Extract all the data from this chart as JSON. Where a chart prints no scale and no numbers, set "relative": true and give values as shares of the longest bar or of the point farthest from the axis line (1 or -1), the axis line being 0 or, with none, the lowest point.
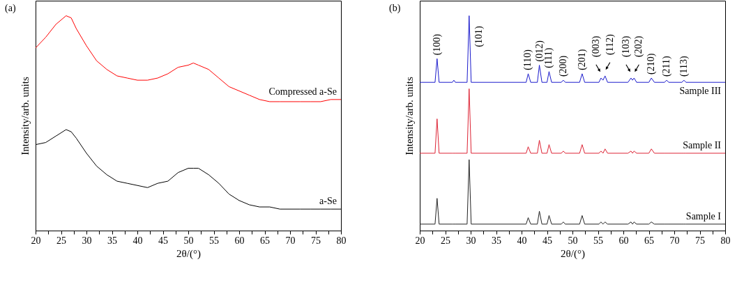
{
  "chart_data": [
    {
      "type": "line",
      "title": "(a)",
      "xlabel": "2θ/(°)",
      "ylabel": "Intensity/arb. units",
      "relative": true,
      "tick_labels": "x",
      "grid": false,
      "legend": false,
      "marker": "none",
      "line_style": "solid",
      "xlim": [
        20,
        80
      ],
      "xticks": [
        20,
        {
          "value": 22.5,
          "label": null
        },
        25,
        {
          "value": 27.5,
          "label": null
        },
        30,
        {
          "value": 32.5,
          "label": null
        },
        35,
        {
          "value": 37.5,
          "label": null
        },
        40,
        {
          "value": 42.5,
          "label": null
        },
        45,
        {
          "value": 47.5,
          "label": null
        },
        50,
        {
          "value": 52.5,
          "label": null
        },
        55,
        {
          "value": 57.5,
          "label": null
        },
        60,
        {
          "value": 62.5,
          "label": null
        },
        65,
        {
          "value": 67.5,
          "label": null
        },
        70,
        {
          "value": 72.5,
          "label": null
        },
        75,
        {
          "value": 77.5,
          "label": null
        },
        80
      ],
      "x": [
        20,
        22,
        24,
        26,
        27,
        28,
        30,
        32,
        34,
        36,
        38,
        40,
        42,
        44,
        46,
        48,
        50,
        51,
        52,
        54,
        56,
        58,
        60,
        62,
        64,
        66,
        68,
        70,
        72,
        74,
        76,
        78,
        80
      ],
      "series": [
        {
          "name": "Compressed a-Se",
          "color": "#ff0000",
          "values": [
            0.85,
            0.9,
            0.96,
            1,
            0.99,
            0.94,
            0.86,
            0.79,
            0.75,
            0.72,
            0.71,
            0.7,
            0.7,
            0.71,
            0.73,
            0.76,
            0.77,
            0.78,
            0.77,
            0.75,
            0.71,
            0.67,
            0.65,
            0.63,
            0.61,
            0.6,
            0.6,
            0.6,
            0.6,
            0.6,
            0.6,
            0.61,
            0.61
          ]
        },
        {
          "name": "a-Se",
          "color": "#000000",
          "values": [
            0.4,
            0.41,
            0.44,
            0.47,
            0.46,
            0.43,
            0.36,
            0.3,
            0.26,
            0.23,
            0.22,
            0.21,
            0.2,
            0.22,
            0.23,
            0.27,
            0.29,
            0.29,
            0.29,
            0.26,
            0.22,
            0.17,
            0.14,
            0.12,
            0.11,
            0.11,
            0.1,
            0.1,
            0.1,
            0.1,
            0.1,
            0.1,
            0.1
          ]
        }
      ]
    },
    {
      "type": "line",
      "title": "(b)",
      "xlabel": "2θ/(°)",
      "ylabel": "Intensity/arb. units",
      "relative": true,
      "tick_labels": "x",
      "grid": false,
      "legend": false,
      "marker": "none",
      "line_style": "solid",
      "xlim": [
        20,
        80
      ],
      "xticks": [
        20,
        {
          "value": 22.5,
          "label": null
        },
        25,
        {
          "value": 27.5,
          "label": null
        },
        30,
        {
          "value": 32.5,
          "label": null
        },
        35,
        {
          "value": 37.5,
          "label": null
        },
        40,
        {
          "value": 42.5,
          "label": null
        },
        45,
        {
          "value": 47.5,
          "label": null
        },
        50,
        {
          "value": 52.5,
          "label": null
        },
        55,
        {
          "value": 57.5,
          "label": null
        },
        60,
        {
          "value": 62.5,
          "label": null
        },
        65,
        {
          "value": 67.5,
          "label": null
        },
        70,
        {
          "value": 72.5,
          "label": null
        },
        75,
        {
          "value": 77.5,
          "label": null
        },
        80
      ],
      "x": [
        20,
        23.0,
        23.4,
        23.8,
        26.4,
        26.7,
        27.0,
        29.3,
        29.7,
        30.1,
        40.9,
        41.3,
        41.8,
        43.1,
        43.5,
        44.0,
        45.0,
        45.4,
        45.9,
        47.8,
        48.2,
        48.6,
        51.4,
        51.9,
        52.4,
        55.2,
        55.6,
        56.0,
        56.4,
        56.9,
        60.9,
        61.5,
        61.8,
        62.1,
        62.6,
        65.0,
        65.5,
        66.1,
        68.1,
        68.5,
        68.9,
        71.5,
        71.9,
        72.3,
        80
      ],
      "series": [
        {
          "name": "Sample III",
          "color": "#1a1acc",
          "values": [
            0.69,
            0.69,
            0.8,
            0.69,
            0.69,
            0.7,
            0.69,
            0.69,
            1.0,
            0.69,
            0.69,
            0.73,
            0.69,
            0.69,
            0.77,
            0.69,
            0.69,
            0.74,
            0.69,
            0.69,
            0.7,
            0.69,
            0.69,
            0.73,
            0.69,
            0.69,
            0.71,
            0.7,
            0.72,
            0.69,
            0.69,
            0.71,
            0.7,
            0.71,
            0.69,
            0.69,
            0.71,
            0.69,
            0.69,
            0.7,
            0.69,
            0.69,
            0.7,
            0.69,
            0.69
          ]
        },
        {
          "name": "Sample II",
          "color": "#dd2233",
          "values": [
            0.36,
            0.36,
            0.52,
            0.36,
            0.36,
            0.36,
            0.36,
            0.36,
            0.66,
            0.36,
            0.36,
            0.39,
            0.36,
            0.36,
            0.42,
            0.36,
            0.36,
            0.4,
            0.36,
            0.36,
            0.37,
            0.36,
            0.36,
            0.4,
            0.36,
            0.36,
            0.37,
            0.36,
            0.38,
            0.36,
            0.36,
            0.37,
            0.36,
            0.37,
            0.36,
            0.36,
            0.38,
            0.36,
            0.36,
            0.36,
            0.36,
            0.36,
            0.36,
            0.36,
            0.36
          ]
        },
        {
          "name": "Sample I",
          "color": "#222222",
          "values": [
            0.03,
            0.03,
            0.15,
            0.03,
            0.03,
            0.03,
            0.03,
            0.03,
            0.33,
            0.03,
            0.03,
            0.06,
            0.03,
            0.03,
            0.09,
            0.03,
            0.03,
            0.07,
            0.03,
            0.03,
            0.04,
            0.03,
            0.03,
            0.07,
            0.03,
            0.03,
            0.04,
            0.03,
            0.04,
            0.03,
            0.03,
            0.04,
            0.03,
            0.04,
            0.03,
            0.03,
            0.04,
            0.03,
            0.03,
            0.03,
            0.03,
            0.03,
            0.03,
            0.03,
            0.03
          ]
        }
      ],
      "annotations": [
        {
          "text": "(100)",
          "x": 23.4,
          "y": 0.8
        },
        {
          "text": "(101)",
          "x": 29.7,
          "y": 1.0
        },
        {
          "text": "(110)",
          "x": 41.3,
          "y": 0.73
        },
        {
          "text": "(012)",
          "x": 43.5,
          "y": 0.77
        },
        {
          "text": "(111)",
          "x": 45.4,
          "y": 0.74
        },
        {
          "text": "(200)",
          "x": 48.2,
          "y": 0.7
        },
        {
          "text": "(201)",
          "x": 51.9,
          "y": 0.73
        },
        {
          "text": "(003)",
          "x": 55.6,
          "y": 0.71
        },
        {
          "text": "(112)",
          "x": 56.4,
          "y": 0.72
        },
        {
          "text": "(103)",
          "x": 61.5,
          "y": 0.71
        },
        {
          "text": "(202)",
          "x": 62.1,
          "y": 0.71
        },
        {
          "text": "(210)",
          "x": 65.5,
          "y": 0.71
        },
        {
          "text": "(211)",
          "x": 68.5,
          "y": 0.7
        },
        {
          "text": "(113)",
          "x": 71.9,
          "y": 0.7
        }
      ]
    }
  ]
}
